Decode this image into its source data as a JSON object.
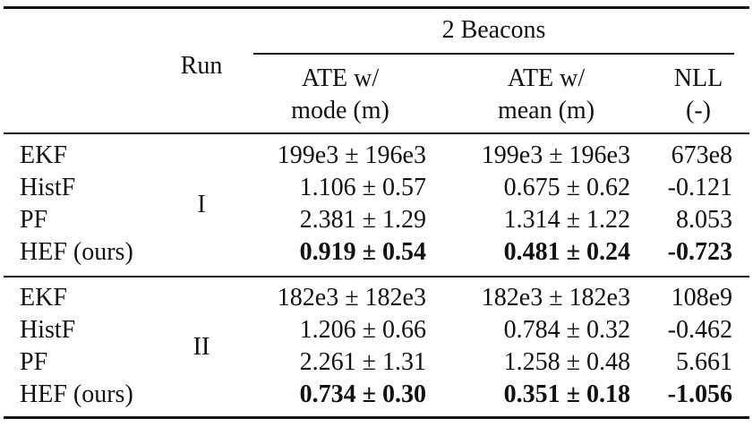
{
  "header": {
    "group_label": "2 Beacons",
    "run_label": "Run",
    "col1_line1": "ATE w/",
    "col1_line2": "mode (m)",
    "col2_line1": "ATE w/",
    "col2_line2": "mean (m)",
    "col3_line1": "NLL",
    "col3_line2": "(-)"
  },
  "groups": [
    {
      "run": "I",
      "rows": [
        {
          "method": "EKF",
          "ate_mode": "199e3 ± 196e3",
          "ate_mean": "199e3 ± 196e3",
          "nll": "673e8",
          "bold": false
        },
        {
          "method": "HistF",
          "ate_mode": "1.106 ± 0.57",
          "ate_mean": "0.675 ± 0.62",
          "nll": "-0.121",
          "bold": false
        },
        {
          "method": "PF",
          "ate_mode": "2.381 ± 1.29",
          "ate_mean": "1.314 ± 1.22",
          "nll": "8.053",
          "bold": false
        },
        {
          "method": "HEF (ours)",
          "ate_mode": "0.919 ± 0.54",
          "ate_mean": "0.481 ± 0.24",
          "nll": "-0.723",
          "bold": true
        }
      ]
    },
    {
      "run": "II",
      "rows": [
        {
          "method": "EKF",
          "ate_mode": "182e3 ± 182e3",
          "ate_mean": "182e3 ± 182e3",
          "nll": "108e9",
          "bold": false
        },
        {
          "method": "HistF",
          "ate_mode": "1.206 ± 0.66",
          "ate_mean": "0.784 ± 0.32",
          "nll": "-0.462",
          "bold": false
        },
        {
          "method": "PF",
          "ate_mode": "2.261 ± 1.31",
          "ate_mean": "1.258 ± 0.48",
          "nll": "5.661",
          "bold": false
        },
        {
          "method": "HEF (ours)",
          "ate_mode": "0.734 ± 0.30",
          "ate_mean": "0.351 ± 0.18",
          "nll": "-1.056",
          "bold": true
        }
      ]
    }
  ]
}
